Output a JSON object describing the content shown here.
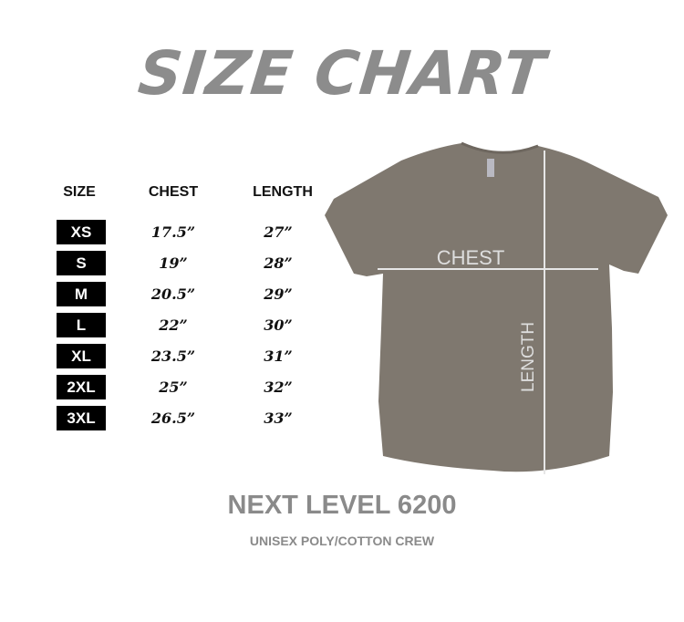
{
  "title": "SIZE CHART",
  "table": {
    "headers": [
      "SIZE",
      "CHEST",
      "LENGTH"
    ],
    "rows": [
      {
        "size": "XS",
        "chest": "17.5”",
        "length": "27”"
      },
      {
        "size": "S",
        "chest": "19”",
        "length": "28”"
      },
      {
        "size": "M",
        "chest": "20.5”",
        "length": "29”"
      },
      {
        "size": "L",
        "chest": "22”",
        "length": "30”"
      },
      {
        "size": "XL",
        "chest": "23.5”",
        "length": "31”"
      },
      {
        "size": "2XL",
        "chest": "25”",
        "length": "32”"
      },
      {
        "size": "3XL",
        "chest": "26.5”",
        "length": "33”"
      }
    ]
  },
  "diagram": {
    "chest_label": "CHEST",
    "length_label": "LENGTH",
    "shirt_color": "#7f786f"
  },
  "footer": {
    "model": "NEXT LEVEL 6200",
    "description": "UNISEX POLY/COTTON CREW"
  }
}
